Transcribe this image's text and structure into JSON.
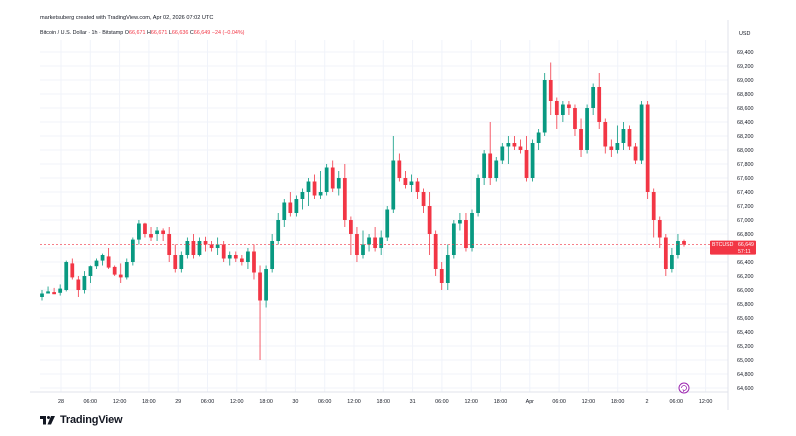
{
  "header": {
    "created_by": "marketsuberg created with TradingView.com, Apr 02, 2026 07:02 UTC"
  },
  "symbol": {
    "name": "Bitcoin / U.S. Dollar · 1h · Bitstamp",
    "o_label": "O",
    "o_value": "66,671",
    "h_label": "H",
    "h_value": "66,671",
    "l_label": "L",
    "l_value": "66,636",
    "c_label": "C",
    "c_value": "66,649",
    "change": "−24 (−0.04%)"
  },
  "axis": {
    "currency": "USD"
  },
  "price_tag": {
    "symbol": "BTCUSD",
    "price": "66,649",
    "countdown": "57:11"
  },
  "brand": {
    "name": "TradingView"
  },
  "colors": {
    "up": "#089981",
    "down": "#f23645",
    "grid": "#f0f3fa",
    "price_line": "#f23645"
  },
  "chart_data": {
    "type": "candlestick",
    "ylim": [
      64500,
      69500
    ],
    "y_ticks": [
      64600,
      64800,
      65000,
      65200,
      65400,
      65600,
      65800,
      66000,
      66200,
      66400,
      66600,
      66800,
      67000,
      67200,
      67400,
      67600,
      67800,
      68000,
      68200,
      68400,
      68600,
      68800,
      69000,
      69200,
      69400
    ],
    "x_ticks": [
      "28",
      "06:00",
      "12:00",
      "18:00",
      "29",
      "06:00",
      "12:00",
      "18:00",
      "30",
      "06:00",
      "12:00",
      "18:00",
      "31",
      "06:00",
      "12:00",
      "18:00",
      "Apr",
      "06:00",
      "12:00",
      "18:00",
      "2",
      "06:00",
      "12:00"
    ],
    "last_price": 66649,
    "grid": true,
    "candles": [
      {
        "o": 65900,
        "h": 66000,
        "l": 65850,
        "c": 65950
      },
      {
        "o": 65950,
        "h": 66050,
        "l": 65950,
        "c": 65980
      },
      {
        "o": 65970,
        "h": 66030,
        "l": 65940,
        "c": 65940
      },
      {
        "o": 65960,
        "h": 66080,
        "l": 65920,
        "c": 66020
      },
      {
        "o": 66000,
        "h": 66420,
        "l": 65980,
        "c": 66400
      },
      {
        "o": 66380,
        "h": 66450,
        "l": 66150,
        "c": 66180
      },
      {
        "o": 66150,
        "h": 66200,
        "l": 65900,
        "c": 66000
      },
      {
        "o": 66000,
        "h": 66270,
        "l": 65950,
        "c": 66200
      },
      {
        "o": 66200,
        "h": 66350,
        "l": 66100,
        "c": 66340
      },
      {
        "o": 66340,
        "h": 66450,
        "l": 66300,
        "c": 66420
      },
      {
        "o": 66420,
        "h": 66520,
        "l": 66350,
        "c": 66500
      },
      {
        "o": 66480,
        "h": 66600,
        "l": 66300,
        "c": 66320
      },
      {
        "o": 66330,
        "h": 66350,
        "l": 66200,
        "c": 66220
      },
      {
        "o": 66220,
        "h": 66380,
        "l": 66100,
        "c": 66180
      },
      {
        "o": 66180,
        "h": 66450,
        "l": 66150,
        "c": 66400
      },
      {
        "o": 66400,
        "h": 66750,
        "l": 66350,
        "c": 66720
      },
      {
        "o": 66720,
        "h": 67000,
        "l": 66650,
        "c": 66950
      },
      {
        "o": 66950,
        "h": 66960,
        "l": 66750,
        "c": 66800
      },
      {
        "o": 66800,
        "h": 66900,
        "l": 66700,
        "c": 66750
      },
      {
        "o": 66800,
        "h": 66900,
        "l": 66700,
        "c": 66850
      },
      {
        "o": 66850,
        "h": 66880,
        "l": 66700,
        "c": 66800
      },
      {
        "o": 66800,
        "h": 66900,
        "l": 66400,
        "c": 66500
      },
      {
        "o": 66500,
        "h": 66650,
        "l": 66250,
        "c": 66300
      },
      {
        "o": 66300,
        "h": 66550,
        "l": 66250,
        "c": 66500
      },
      {
        "o": 66500,
        "h": 66750,
        "l": 66450,
        "c": 66700
      },
      {
        "o": 66700,
        "h": 66800,
        "l": 66450,
        "c": 66500
      },
      {
        "o": 66500,
        "h": 66750,
        "l": 66480,
        "c": 66700
      },
      {
        "o": 66700,
        "h": 66760,
        "l": 66550,
        "c": 66650
      },
      {
        "o": 66650,
        "h": 66700,
        "l": 66550,
        "c": 66600
      },
      {
        "o": 66600,
        "h": 66750,
        "l": 66500,
        "c": 66650
      },
      {
        "o": 66650,
        "h": 66700,
        "l": 66400,
        "c": 66450
      },
      {
        "o": 66450,
        "h": 66550,
        "l": 66350,
        "c": 66500
      },
      {
        "o": 66500,
        "h": 66550,
        "l": 66400,
        "c": 66450
      },
      {
        "o": 66450,
        "h": 66500,
        "l": 66350,
        "c": 66400
      },
      {
        "o": 66400,
        "h": 66600,
        "l": 66300,
        "c": 66550
      },
      {
        "o": 66550,
        "h": 66650,
        "l": 66150,
        "c": 66250
      },
      {
        "o": 66250,
        "h": 66350,
        "l": 65000,
        "c": 65850
      },
      {
        "o": 65850,
        "h": 66350,
        "l": 65750,
        "c": 66300
      },
      {
        "o": 66300,
        "h": 66800,
        "l": 66250,
        "c": 66700
      },
      {
        "o": 66700,
        "h": 67100,
        "l": 66650,
        "c": 67000
      },
      {
        "o": 67000,
        "h": 67300,
        "l": 66900,
        "c": 67250
      },
      {
        "o": 67250,
        "h": 67400,
        "l": 67050,
        "c": 67100
      },
      {
        "o": 67100,
        "h": 67350,
        "l": 67050,
        "c": 67300
      },
      {
        "o": 67300,
        "h": 67450,
        "l": 67150,
        "c": 67400
      },
      {
        "o": 67400,
        "h": 67600,
        "l": 67200,
        "c": 67550
      },
      {
        "o": 67550,
        "h": 67650,
        "l": 67300,
        "c": 67350
      },
      {
        "o": 67350,
        "h": 67700,
        "l": 67300,
        "c": 67400
      },
      {
        "o": 67400,
        "h": 67800,
        "l": 67350,
        "c": 67750
      },
      {
        "o": 67750,
        "h": 67850,
        "l": 67400,
        "c": 67450
      },
      {
        "o": 67450,
        "h": 67700,
        "l": 67350,
        "c": 67600
      },
      {
        "o": 67600,
        "h": 67800,
        "l": 66900,
        "c": 67000
      },
      {
        "o": 67000,
        "h": 67050,
        "l": 66500,
        "c": 66800
      },
      {
        "o": 66800,
        "h": 66900,
        "l": 66400,
        "c": 66500
      },
      {
        "o": 66500,
        "h": 66850,
        "l": 66450,
        "c": 66650
      },
      {
        "o": 66650,
        "h": 66800,
        "l": 66550,
        "c": 66750
      },
      {
        "o": 66750,
        "h": 66900,
        "l": 66550,
        "c": 66600
      },
      {
        "o": 66600,
        "h": 66850,
        "l": 66500,
        "c": 66750
      },
      {
        "o": 66750,
        "h": 67200,
        "l": 66700,
        "c": 67150
      },
      {
        "o": 67150,
        "h": 68200,
        "l": 67100,
        "c": 67850
      },
      {
        "o": 67850,
        "h": 67950,
        "l": 67550,
        "c": 67600
      },
      {
        "o": 67600,
        "h": 67700,
        "l": 67450,
        "c": 67500
      },
      {
        "o": 67500,
        "h": 67650,
        "l": 67400,
        "c": 67550
      },
      {
        "o": 67550,
        "h": 67600,
        "l": 67300,
        "c": 67400
      },
      {
        "o": 67400,
        "h": 67450,
        "l": 67100,
        "c": 67200
      },
      {
        "o": 67200,
        "h": 67400,
        "l": 66500,
        "c": 66800
      },
      {
        "o": 66800,
        "h": 66850,
        "l": 66200,
        "c": 66300
      },
      {
        "o": 66300,
        "h": 66400,
        "l": 66000,
        "c": 66100
      },
      {
        "o": 66100,
        "h": 66650,
        "l": 66000,
        "c": 66500
      },
      {
        "o": 66500,
        "h": 67000,
        "l": 66450,
        "c": 66950
      },
      {
        "o": 66950,
        "h": 67100,
        "l": 66850,
        "c": 67000
      },
      {
        "o": 67000,
        "h": 67100,
        "l": 66550,
        "c": 66600
      },
      {
        "o": 66600,
        "h": 67150,
        "l": 66550,
        "c": 67100
      },
      {
        "o": 67100,
        "h": 67650,
        "l": 67050,
        "c": 67600
      },
      {
        "o": 67600,
        "h": 68000,
        "l": 67500,
        "c": 67950
      },
      {
        "o": 67950,
        "h": 68400,
        "l": 67500,
        "c": 67600
      },
      {
        "o": 67600,
        "h": 67900,
        "l": 67550,
        "c": 67850
      },
      {
        "o": 67850,
        "h": 68100,
        "l": 67800,
        "c": 68050
      },
      {
        "o": 68050,
        "h": 68200,
        "l": 67800,
        "c": 68100
      },
      {
        "o": 68100,
        "h": 68200,
        "l": 68000,
        "c": 68050
      },
      {
        "o": 68050,
        "h": 68150,
        "l": 67950,
        "c": 68000
      },
      {
        "o": 68000,
        "h": 68200,
        "l": 67550,
        "c": 67600
      },
      {
        "o": 67600,
        "h": 68150,
        "l": 67550,
        "c": 68100
      },
      {
        "o": 68100,
        "h": 68300,
        "l": 68000,
        "c": 68250
      },
      {
        "o": 68250,
        "h": 69100,
        "l": 68200,
        "c": 69000
      },
      {
        "o": 69000,
        "h": 69250,
        "l": 68500,
        "c": 68700
      },
      {
        "o": 68700,
        "h": 68750,
        "l": 68300,
        "c": 68500
      },
      {
        "o": 68500,
        "h": 68700,
        "l": 68400,
        "c": 68650
      },
      {
        "o": 68650,
        "h": 68700,
        "l": 68500,
        "c": 68600
      },
      {
        "o": 68600,
        "h": 68650,
        "l": 68200,
        "c": 68300
      },
      {
        "o": 68300,
        "h": 68450,
        "l": 67900,
        "c": 68000
      },
      {
        "o": 68000,
        "h": 68650,
        "l": 67950,
        "c": 68600
      },
      {
        "o": 68600,
        "h": 68950,
        "l": 68500,
        "c": 68900
      },
      {
        "o": 68900,
        "h": 69100,
        "l": 68300,
        "c": 68400
      },
      {
        "o": 68400,
        "h": 68450,
        "l": 67950,
        "c": 68050
      },
      {
        "o": 68050,
        "h": 68150,
        "l": 67900,
        "c": 68000
      },
      {
        "o": 68000,
        "h": 68350,
        "l": 67950,
        "c": 68100
      },
      {
        "o": 68100,
        "h": 68400,
        "l": 68000,
        "c": 68300
      },
      {
        "o": 68300,
        "h": 68350,
        "l": 68000,
        "c": 68050
      },
      {
        "o": 68050,
        "h": 68100,
        "l": 67800,
        "c": 67850
      },
      {
        "o": 67850,
        "h": 68700,
        "l": 67800,
        "c": 68650
      },
      {
        "o": 68650,
        "h": 68700,
        "l": 67300,
        "c": 67400
      },
      {
        "o": 67400,
        "h": 67450,
        "l": 66750,
        "c": 67000
      },
      {
        "o": 67000,
        "h": 67050,
        "l": 66600,
        "c": 66750
      },
      {
        "o": 66750,
        "h": 66800,
        "l": 66200,
        "c": 66300
      },
      {
        "o": 66300,
        "h": 66600,
        "l": 66250,
        "c": 66500
      },
      {
        "o": 66500,
        "h": 66800,
        "l": 66450,
        "c": 66700
      },
      {
        "o": 66700,
        "h": 66720,
        "l": 66620,
        "c": 66649
      }
    ]
  }
}
